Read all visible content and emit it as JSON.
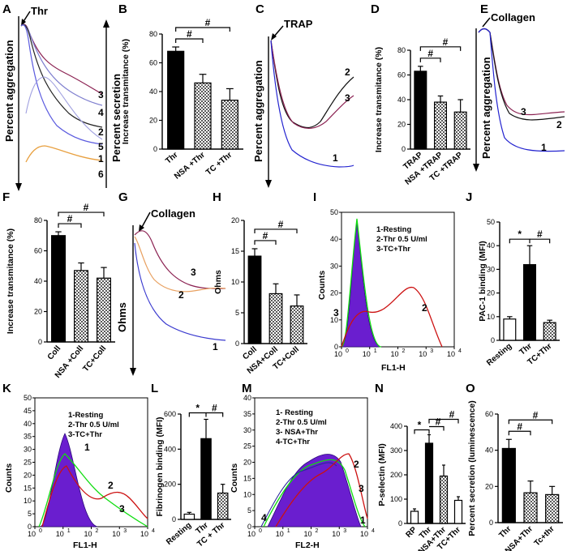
{
  "figure": {
    "panel_letters": [
      "A",
      "B",
      "C",
      "D",
      "E",
      "F",
      "G",
      "H",
      "I",
      "J",
      "K",
      "L",
      "M",
      "N",
      "O"
    ]
  },
  "chart_data": [
    {
      "panel": "A",
      "type": "line",
      "ylabel_left": "Percent aggregation",
      "ylabel_right": "Percent secretion",
      "agonist_label": "Thr",
      "series": [
        {
          "name": "3",
          "color": "#8b2252"
        },
        {
          "name": "4",
          "color": "#7f7fcf"
        },
        {
          "name": "2",
          "color": "#222222"
        },
        {
          "name": "5",
          "color": "#a0a0e0"
        },
        {
          "name": "1",
          "color": "#2323cf"
        },
        {
          "name": "6",
          "color": "#e8a040"
        }
      ]
    },
    {
      "panel": "B",
      "type": "bar",
      "ylabel": "Increase transmitance (%)",
      "categories": [
        "Thr",
        "NSA +Thr",
        "TC +Thr"
      ],
      "values": [
        68,
        46,
        34
      ],
      "errors": [
        3,
        6,
        8
      ],
      "ylim": [
        0,
        80
      ],
      "yticks": [
        "0",
        "20",
        "40",
        "60",
        "80"
      ],
      "significance": [
        "#",
        "#"
      ]
    },
    {
      "panel": "C",
      "type": "line",
      "ylabel": "Percent aggregation",
      "agonist_label": "TRAP",
      "series": [
        {
          "name": "2",
          "color": "#111111"
        },
        {
          "name": "3",
          "color": "#8b2252"
        },
        {
          "name": "1",
          "color": "#2323cf"
        }
      ]
    },
    {
      "panel": "D",
      "type": "bar",
      "ylabel": "Increase transmitance (%)",
      "categories": [
        "TRAP",
        "NSA +TRAP",
        "TC +TRAP"
      ],
      "values": [
        63,
        38,
        30
      ],
      "errors": [
        4,
        5,
        10
      ],
      "ylim": [
        0,
        80
      ],
      "yticks": [
        "0",
        "20",
        "40",
        "60",
        "80"
      ],
      "significance": [
        "#",
        "#"
      ]
    },
    {
      "panel": "E",
      "type": "line",
      "ylabel": "Percent aggregation",
      "agonist_label": "Collagen",
      "series": [
        {
          "name": "3",
          "color": "#8b2252"
        },
        {
          "name": "2",
          "color": "#111111"
        },
        {
          "name": "1",
          "color": "#2323cf"
        }
      ]
    },
    {
      "panel": "F",
      "type": "bar",
      "ylabel": "Increase transmitance (%)",
      "categories": [
        "Coll",
        "NSA +Coll",
        "TC+Coll"
      ],
      "values": [
        70,
        47,
        42
      ],
      "errors": [
        2.5,
        5,
        7
      ],
      "ylim": [
        0,
        80
      ],
      "yticks": [
        "0",
        "20",
        "40",
        "60",
        "80"
      ],
      "significance": [
        "#",
        "#"
      ]
    },
    {
      "panel": "G",
      "type": "line",
      "ylabel": "Ohms",
      "agonist_label": "Collagen",
      "series": [
        {
          "name": "3",
          "color": "#8b2252"
        },
        {
          "name": "2",
          "color": "#e8a060"
        },
        {
          "name": "1",
          "color": "#3a3acf"
        }
      ]
    },
    {
      "panel": "H",
      "type": "bar",
      "ylabel": "Ohms",
      "categories": [
        "Coll",
        "NSA+Coll",
        "TC+Coll"
      ],
      "values": [
        14.2,
        8.1,
        6.1
      ],
      "errors": [
        1.2,
        1.6,
        1.8
      ],
      "ylim": [
        0,
        20
      ],
      "yticks": [
        "0",
        "5",
        "10",
        "15",
        "20"
      ],
      "significance": [
        "#",
        "#"
      ]
    },
    {
      "panel": "I",
      "type": "histogram",
      "ylabel": "Counts",
      "xlabel": "FL1-H",
      "xticks": [
        "10",
        "10",
        "10",
        "10",
        "10"
      ],
      "xexp": [
        "0",
        "1",
        "2",
        "3",
        "4"
      ],
      "yticks": [
        "0",
        "10",
        "20",
        "30",
        "40",
        "50"
      ],
      "legend": [
        "1-Resting",
        "2-Thr 0.5 U/ml",
        "3-TC+Thr"
      ],
      "curve_labels": [
        "3",
        "2"
      ]
    },
    {
      "panel": "J",
      "type": "bar",
      "ylabel": "PAC-1 binding (MFI)",
      "categories": [
        "Resting",
        "Thr",
        "TC+Thr"
      ],
      "values": [
        9,
        32,
        7.5
      ],
      "errors": [
        1,
        8,
        1
      ],
      "ylim": [
        0,
        50
      ],
      "yticks": [
        "0",
        "10",
        "20",
        "30",
        "40",
        "50"
      ],
      "significance": [
        "*",
        "#"
      ]
    },
    {
      "panel": "K",
      "type": "histogram",
      "ylabel": "Counts",
      "xlabel": "FL1-H",
      "xticks": [
        "10",
        "10",
        "10",
        "10",
        "10"
      ],
      "xexp": [
        "0",
        "1",
        "2",
        "3",
        "4"
      ],
      "yticks": [
        "0",
        "5",
        "10",
        "15",
        "20",
        "25",
        "30",
        "35",
        "40",
        "45",
        "50"
      ],
      "legend": [
        "1-Resting",
        "2-Thr 0.5 U/ml",
        "3-TC+Thr"
      ],
      "curve_labels": [
        "1",
        "2",
        "3"
      ]
    },
    {
      "panel": "L",
      "type": "bar",
      "ylabel": "Fibrinogen binding (MFI)",
      "categories": [
        "Resting",
        "Thr",
        "TC + Thr"
      ],
      "values": [
        30,
        460,
        150
      ],
      "errors": [
        10,
        110,
        50
      ],
      "ylim": [
        0,
        600
      ],
      "yticks": [
        "0",
        "200",
        "400",
        "600"
      ],
      "significance": [
        "*",
        "#"
      ]
    },
    {
      "panel": "M",
      "type": "histogram",
      "ylabel": "Counts",
      "xlabel": "FL2-H",
      "xticks": [
        "10",
        "10",
        "10",
        "10",
        "10"
      ],
      "xexp": [
        "0",
        "1",
        "2",
        "3",
        "4"
      ],
      "yticks": [
        "0",
        "5",
        "10",
        "15",
        "20",
        "25",
        "30",
        "35",
        "40"
      ],
      "legend": [
        "1- Resting",
        "2-Thr 0.5 U/ml",
        "3- NSA+Thr",
        "4-TC+Thr"
      ],
      "curve_labels": [
        "4",
        "2",
        "3",
        "1"
      ]
    },
    {
      "panel": "N",
      "type": "bar",
      "ylabel": "P-selectin (MFI)",
      "categories": [
        "RP",
        "Thr",
        "NSA+Thr",
        "TC+Thr"
      ],
      "values": [
        50,
        330,
        195,
        95
      ],
      "errors": [
        10,
        35,
        45,
        15
      ],
      "ylim": [
        0,
        400
      ],
      "yticks": [
        "0",
        "100",
        "200",
        "300",
        "400"
      ],
      "significance": [
        "*",
        "#",
        "#"
      ]
    },
    {
      "panel": "O",
      "type": "bar",
      "ylabel": "Percent secretion (luminescence)",
      "categories": [
        "Thr",
        "NSA+Thr",
        "Tc+thr"
      ],
      "values": [
        41,
        16.5,
        15.5
      ],
      "errors": [
        5,
        6.5,
        4.5
      ],
      "ylim": [
        0,
        60
      ],
      "yticks": [
        "0",
        "20",
        "40",
        "60"
      ],
      "significance": [
        "#",
        "#"
      ]
    }
  ]
}
